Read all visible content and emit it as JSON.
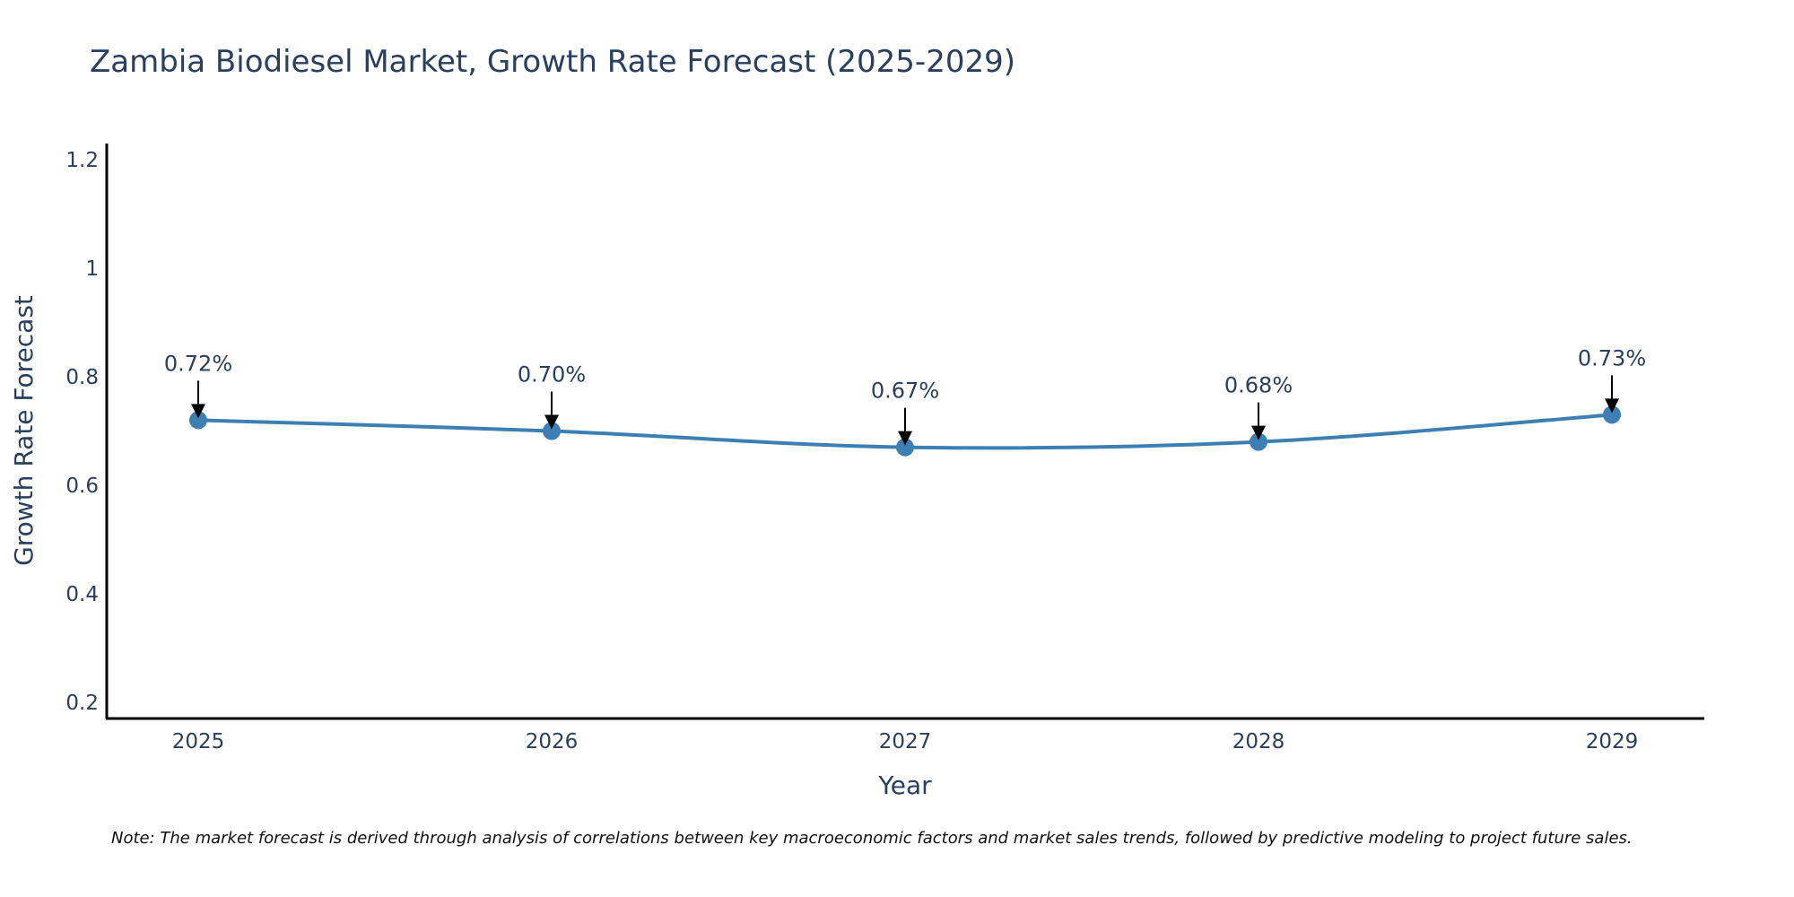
{
  "chart_data": {
    "type": "line",
    "title": "Zambia Biodiesel Market, Growth Rate Forecast (2025-2029)",
    "xlabel": "Year",
    "ylabel": "Growth Rate Forecast",
    "categories": [
      "2025",
      "2026",
      "2027",
      "2028",
      "2029"
    ],
    "values": [
      0.72,
      0.7,
      0.67,
      0.68,
      0.73
    ],
    "data_labels": [
      "0.72%",
      "0.70%",
      "0.67%",
      "0.68%",
      "0.73%"
    ],
    "ylim": [
      0.17,
      1.23
    ],
    "yticks": [
      0.2,
      0.4,
      0.6,
      0.8,
      1,
      1.2
    ],
    "ytick_labels": [
      "0.2",
      "0.4",
      "0.6",
      "0.8",
      "1",
      "1.2"
    ],
    "grid": false,
    "legend": "none",
    "line_shape": "spline",
    "colors": {
      "line": "#3d7fb3",
      "marker": "#3d7fb3",
      "arrow": "#000000",
      "text": "#2a3f5f",
      "axis": "#000000"
    }
  },
  "note": "Note: The market forecast is derived through analysis of correlations between key macroeconomic factors and market sales trends, followed by predictive modeling to project future sales."
}
